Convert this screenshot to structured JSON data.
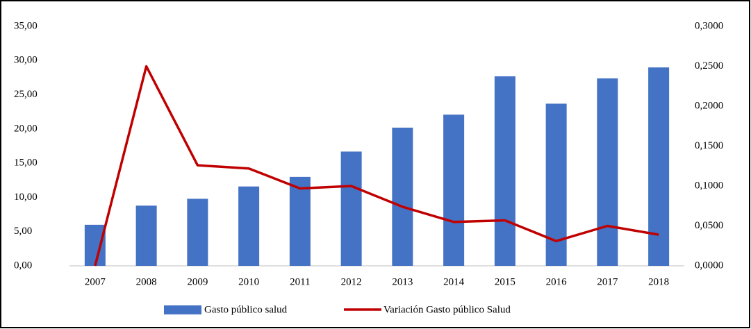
{
  "chart_data": {
    "type": "bar_line",
    "categories": [
      "2007",
      "2008",
      "2009",
      "2010",
      "2011",
      "2012",
      "2013",
      "2014",
      "2015",
      "2016",
      "2017",
      "2018"
    ],
    "series": [
      {
        "name": "Gasto público salud",
        "type": "bar",
        "axis": "y",
        "color": "#4472c4",
        "values": [
          6.0,
          8.8,
          9.8,
          11.6,
          13.0,
          16.7,
          20.2,
          22.1,
          27.7,
          23.7,
          27.4,
          29.0
        ]
      },
      {
        "name": "Variación Gasto público Salud",
        "type": "line",
        "axis": "y2",
        "color": "#c00000",
        "values": [
          0.0,
          0.25,
          0.126,
          0.122,
          0.097,
          0.1,
          0.074,
          0.055,
          0.057,
          0.031,
          0.05,
          0.039
        ]
      }
    ],
    "ylim": [
      0,
      35
    ],
    "yticks": [
      {
        "value": 0,
        "label": "0,00"
      },
      {
        "value": 5,
        "label": "5,00"
      },
      {
        "value": 10,
        "label": "10,00"
      },
      {
        "value": 15,
        "label": "15,00"
      },
      {
        "value": 20,
        "label": "20,00"
      },
      {
        "value": 25,
        "label": "25,00"
      },
      {
        "value": 30,
        "label": "30,00"
      },
      {
        "value": 35,
        "label": "35,00"
      }
    ],
    "y2lim": [
      0,
      0.3
    ],
    "y2ticks": [
      {
        "value": 0,
        "label": "0,0000"
      },
      {
        "value": 0.05,
        "label": "0,0500"
      },
      {
        "value": 0.1,
        "label": "0,1000"
      },
      {
        "value": 0.15,
        "label": "0,1500"
      },
      {
        "value": 0.2,
        "label": "0,2000"
      },
      {
        "value": 0.25,
        "label": "0,2500"
      },
      {
        "value": 0.3,
        "label": "0,3000"
      }
    ],
    "grid": false,
    "legend": "bottom"
  }
}
